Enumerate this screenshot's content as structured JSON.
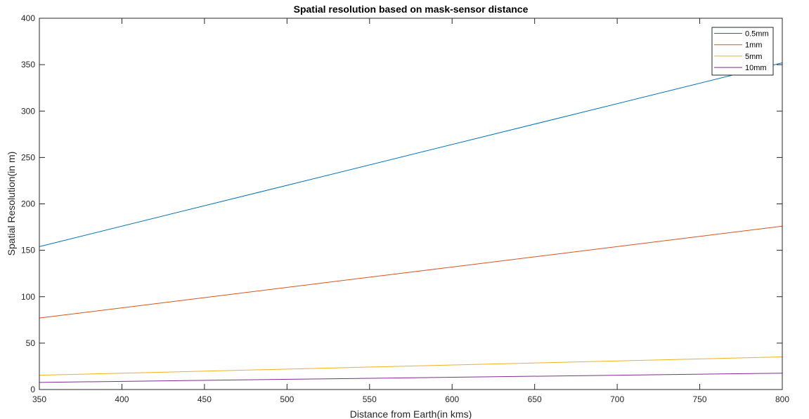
{
  "chart_data": {
    "type": "line",
    "title": "Spatial resolution based on mask-sensor distance",
    "xlabel": "Distance from Earth(in kms)",
    "ylabel": "Spatial Resolution(in m)",
    "xlim": [
      350,
      800
    ],
    "ylim": [
      0,
      400
    ],
    "xticks": [
      350,
      400,
      450,
      500,
      550,
      600,
      650,
      700,
      750,
      800
    ],
    "yticks": [
      0,
      50,
      100,
      150,
      200,
      250,
      300,
      350,
      400
    ],
    "grid": false,
    "legend_position": "top-right",
    "x": [
      350,
      800
    ],
    "series": [
      {
        "name": "0.5mm",
        "color": "#0072BD",
        "values": [
          154,
          352
        ]
      },
      {
        "name": "1mm",
        "color": "#D95319",
        "values": [
          77,
          176
        ]
      },
      {
        "name": "5mm",
        "color": "#EDB120",
        "values": [
          15.4,
          35.2
        ]
      },
      {
        "name": "10mm",
        "color": "#7E2F8E",
        "values": [
          7.7,
          17.6
        ]
      }
    ]
  }
}
